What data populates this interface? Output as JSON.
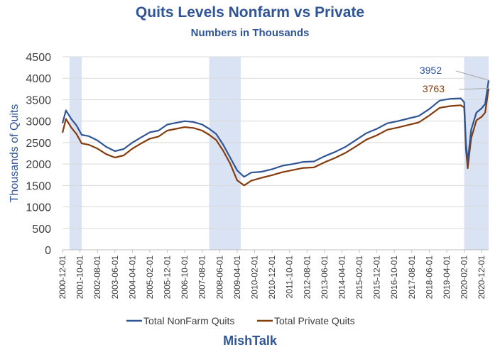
{
  "chart_data": {
    "type": "line",
    "title": "Quits Levels Nonfarm vs Private",
    "subtitle": "Numbers in Thousands",
    "ylabel": "Thousands of Quits",
    "xlabel": "",
    "ylim": [
      0,
      4500
    ],
    "yticks": [
      "0",
      "500",
      "1000",
      "1500",
      "2000",
      "2500",
      "3000",
      "3500",
      "4000",
      "4500"
    ],
    "x_tick_labels": [
      "2000-12-01",
      "2001-10-01",
      "2002-08-01",
      "2003-06-01",
      "2004-04-01",
      "2005-02-01",
      "2005-12-01",
      "2006-10-01",
      "2007-08-01",
      "2008-06-01",
      "2009-04-01",
      "2010-02-01",
      "2010-12-01",
      "2011-10-01",
      "2012-08-01",
      "2013-06-01",
      "2014-04-01",
      "2015-02-01",
      "2015-12-01",
      "2016-10-01",
      "2017-08-01",
      "2018-06-01",
      "2019-04-01",
      "2020-02-01",
      "2020-12-01"
    ],
    "legend_position": "bottom",
    "grid": "horizontal",
    "recessions": [
      {
        "start": "2001-04",
        "end": "2001-11"
      },
      {
        "start": "2007-12",
        "end": "2009-06"
      },
      {
        "start": "2020-02",
        "end": "2021-04"
      }
    ],
    "annotations": [
      {
        "text": "3952",
        "series": "Total NonFarm Quits",
        "value": 3952
      },
      {
        "text": "3763",
        "series": "Total Private Quits",
        "value": 3763
      }
    ],
    "series": [
      {
        "name": "Total NonFarm Quits",
        "color": "#2f5597",
        "x": [
          "2000-12",
          "2001-02",
          "2001-05",
          "2001-08",
          "2001-11",
          "2002-03",
          "2002-08",
          "2003-01",
          "2003-06",
          "2003-11",
          "2004-04",
          "2004-09",
          "2005-02",
          "2005-07",
          "2005-12",
          "2006-05",
          "2006-10",
          "2007-03",
          "2007-08",
          "2007-12",
          "2008-04",
          "2008-08",
          "2008-12",
          "2009-04",
          "2009-08",
          "2009-12",
          "2010-06",
          "2010-12",
          "2011-06",
          "2011-12",
          "2012-06",
          "2012-12",
          "2013-06",
          "2013-12",
          "2014-06",
          "2014-12",
          "2015-06",
          "2015-12",
          "2016-06",
          "2016-12",
          "2017-06",
          "2017-12",
          "2018-06",
          "2018-12",
          "2019-06",
          "2019-12",
          "2020-02",
          "2020-03",
          "2020-04",
          "2020-06",
          "2020-09",
          "2020-12",
          "2021-02",
          "2021-04"
        ],
        "values": [
          2950,
          3250,
          3050,
          2900,
          2680,
          2650,
          2550,
          2400,
          2300,
          2350,
          2500,
          2620,
          2740,
          2780,
          2920,
          2960,
          3000,
          2980,
          2920,
          2820,
          2700,
          2450,
          2150,
          1850,
          1700,
          1800,
          1820,
          1880,
          1960,
          2000,
          2050,
          2060,
          2180,
          2280,
          2400,
          2560,
          2720,
          2820,
          2950,
          3000,
          3060,
          3120,
          3280,
          3480,
          3520,
          3530,
          3440,
          2500,
          2050,
          2800,
          3200,
          3300,
          3400,
          3952
        ]
      },
      {
        "name": "Total Private Quits",
        "color": "#843c0c",
        "x": [
          "2000-12",
          "2001-02",
          "2001-05",
          "2001-08",
          "2001-11",
          "2002-03",
          "2002-08",
          "2003-01",
          "2003-06",
          "2003-11",
          "2004-04",
          "2004-09",
          "2005-02",
          "2005-07",
          "2005-12",
          "2006-05",
          "2006-10",
          "2007-03",
          "2007-08",
          "2007-12",
          "2008-04",
          "2008-08",
          "2008-12",
          "2009-04",
          "2009-08",
          "2009-12",
          "2010-06",
          "2010-12",
          "2011-06",
          "2011-12",
          "2012-06",
          "2012-12",
          "2013-06",
          "2013-12",
          "2014-06",
          "2014-12",
          "2015-06",
          "2015-12",
          "2016-06",
          "2016-12",
          "2017-06",
          "2017-12",
          "2018-06",
          "2018-12",
          "2019-06",
          "2019-12",
          "2020-02",
          "2020-03",
          "2020-04",
          "2020-06",
          "2020-09",
          "2020-12",
          "2021-02",
          "2021-04"
        ],
        "values": [
          2730,
          3050,
          2850,
          2700,
          2480,
          2450,
          2360,
          2230,
          2150,
          2200,
          2360,
          2480,
          2590,
          2640,
          2780,
          2820,
          2860,
          2840,
          2780,
          2680,
          2560,
          2310,
          2010,
          1620,
          1500,
          1610,
          1680,
          1740,
          1810,
          1860,
          1910,
          1920,
          2040,
          2140,
          2260,
          2410,
          2570,
          2670,
          2800,
          2850,
          2910,
          2970,
          3130,
          3310,
          3350,
          3370,
          3320,
          2350,
          1900,
          2600,
          3020,
          3100,
          3200,
          3763
        ]
      }
    ]
  },
  "footer": "MishTalk"
}
